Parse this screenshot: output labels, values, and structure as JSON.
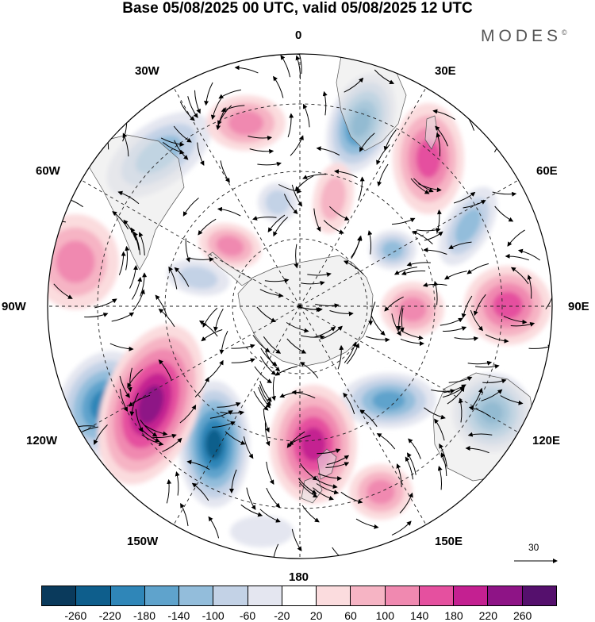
{
  "title": "Base 05/08/2025 00 UTC, valid 05/08/2025 12 UTC",
  "brand": {
    "name": "MODES",
    "mark": "©"
  },
  "meridian_labels": {
    "top": "0",
    "e30": "30E",
    "e60": "60E",
    "e90": "90E",
    "e120": "120E",
    "e150": "150E",
    "bottom": "180",
    "w150": "150W",
    "w120": "120W",
    "w90": "90W",
    "w60": "60W",
    "w30": "30W"
  },
  "vector_reference": {
    "label": "30"
  },
  "colorbar": {
    "colors": [
      "#0a3a5c",
      "#0e5e8c",
      "#2f86b8",
      "#5fa3cc",
      "#93bddb",
      "#c3d2e6",
      "#e4e6f0",
      "#ffffff",
      "#fbdcde",
      "#f6b4c4",
      "#f089b0",
      "#e5509f",
      "#c42091",
      "#8e1486",
      "#55106d"
    ],
    "ticks": [
      "-260",
      "-220",
      "-180",
      "-140",
      "-100",
      "-60",
      "-20",
      "20",
      "60",
      "100",
      "140",
      "180",
      "220",
      "260"
    ]
  }
}
